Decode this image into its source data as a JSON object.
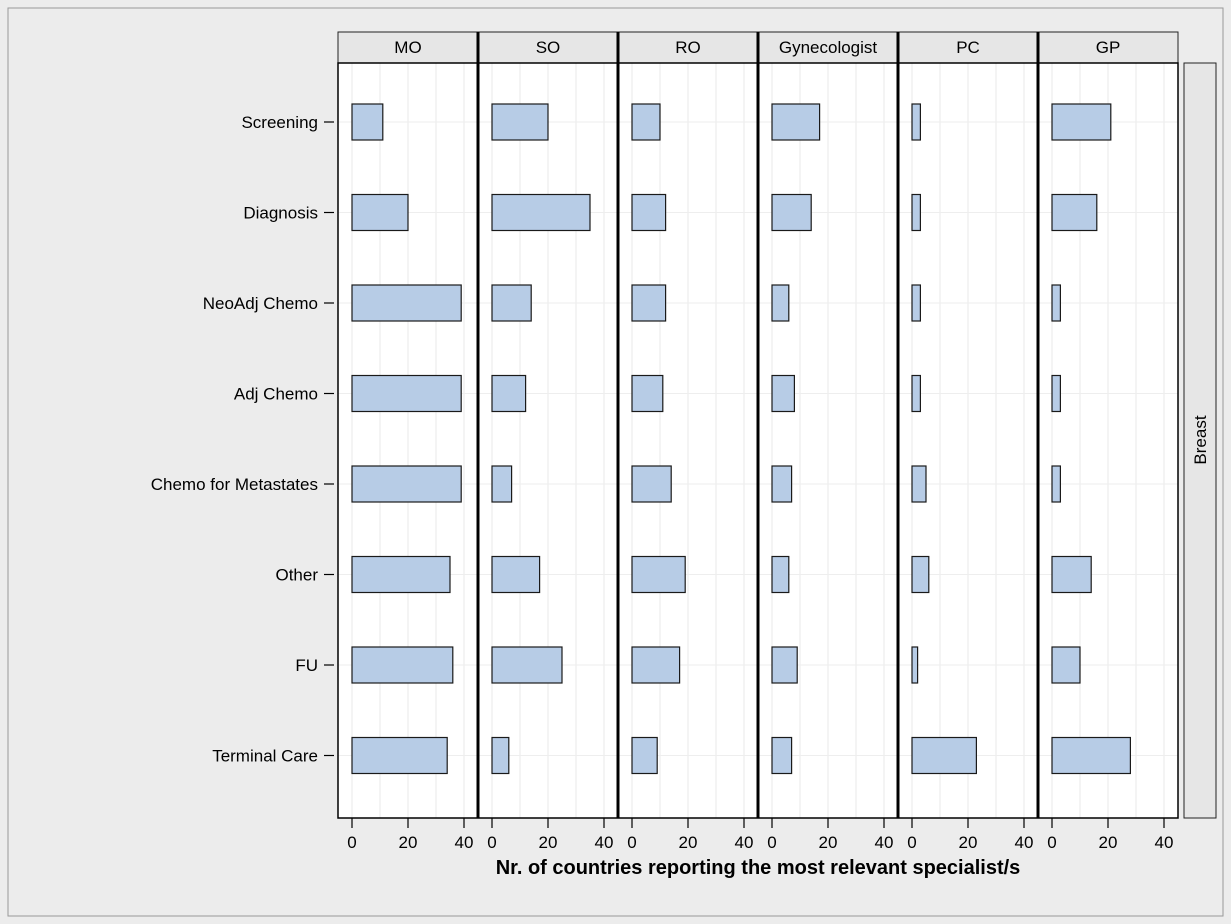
{
  "chart_data": {
    "type": "bar",
    "orientation": "horizontal",
    "layout": "panel",
    "categories": [
      "Screening",
      "Diagnosis",
      "NeoAdj Chemo",
      "Adj Chemo",
      "Chemo for Metastates",
      "Other",
      "FU",
      "Terminal Care"
    ],
    "xlabel": "Nr. of countries reporting the most relevant specialist/s",
    "xlim": [
      -5,
      45
    ],
    "xticks": [
      0,
      20,
      40
    ],
    "row_label": "Breast",
    "grid": true,
    "bar_color": "#b7cce6",
    "bar_edge_color": "#1a1a1a",
    "panel_header_color": "#e6e6e6",
    "outer_background": "#ececec",
    "series": [
      {
        "name": "MO",
        "values": [
          11,
          20,
          39,
          39,
          39,
          35,
          36,
          34
        ]
      },
      {
        "name": "SO",
        "values": [
          20,
          35,
          14,
          12,
          7,
          17,
          25,
          6
        ]
      },
      {
        "name": "RO",
        "values": [
          10,
          12,
          12,
          11,
          14,
          19,
          17,
          9
        ]
      },
      {
        "name": "Gynecologist",
        "values": [
          17,
          14,
          6,
          8,
          7,
          6,
          9,
          7
        ]
      },
      {
        "name": "PC",
        "values": [
          3,
          3,
          3,
          3,
          5,
          6,
          2,
          23
        ]
      },
      {
        "name": "GP",
        "values": [
          21,
          16,
          3,
          3,
          3,
          14,
          10,
          28
        ]
      }
    ]
  }
}
